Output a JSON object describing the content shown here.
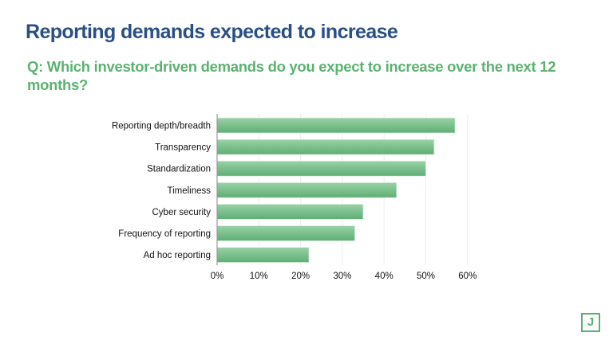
{
  "header": {
    "title": "Reporting demands expected to increase",
    "question": "Q: Which investor-driven demands do you expect to increase over the next 12 months?"
  },
  "logo": {
    "letter": "J",
    "name": "company-logo"
  },
  "colors": {
    "title": "#2a4f85",
    "accent": "#5bb270",
    "bar_top": "#98d2a6",
    "bar_bottom": "#5fae74",
    "axis": "#9a9a9a",
    "grid": "#ececec",
    "text": "#111111"
  },
  "chart_data": {
    "type": "bar",
    "orientation": "horizontal",
    "title": "",
    "xlabel": "",
    "ylabel": "",
    "categories": [
      "Reporting depth/breadth",
      "Transparency",
      "Standardization",
      "Timeliness",
      "Cyber security",
      "Frequency of reporting",
      "Ad hoc reporting"
    ],
    "values": [
      57,
      52,
      50,
      43,
      35,
      33,
      22
    ],
    "unit": "%",
    "xlim": [
      0,
      60
    ],
    "xticks": [
      0,
      10,
      20,
      30,
      40,
      50,
      60
    ],
    "xtick_labels": [
      "0%",
      "10%",
      "20%",
      "30%",
      "40%",
      "50%",
      "60%"
    ],
    "grid": true,
    "legend": "none"
  }
}
